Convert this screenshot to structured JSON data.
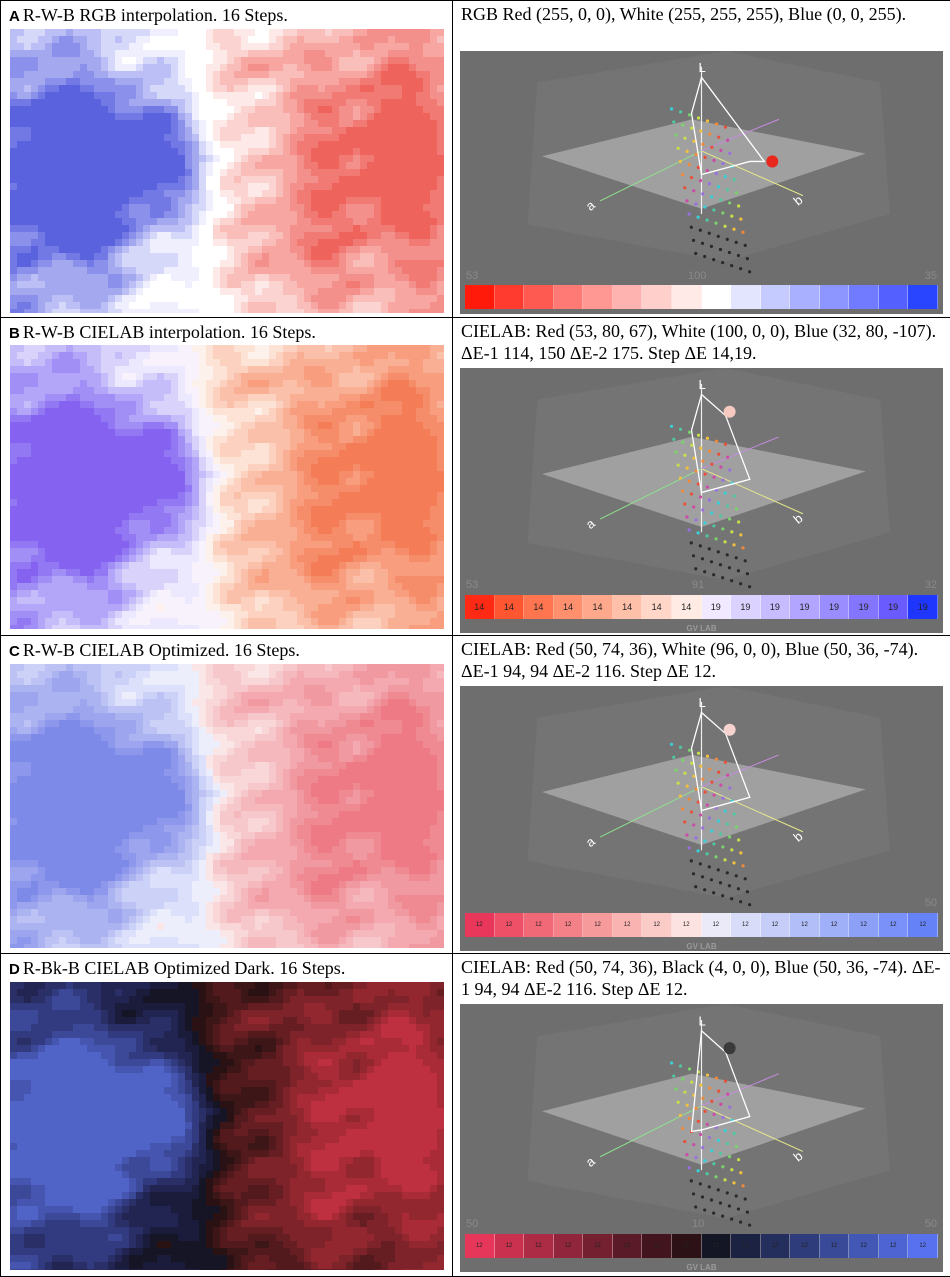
{
  "panels": [
    {
      "letter": "A",
      "caption": "R-W-B RGB interpolation. 16 Steps.",
      "right_caption": "RGB Red (255, 0, 0), White (255, 255, 255), Blue (0, 0, 255).",
      "corner_left": "53",
      "corner_mid": "100",
      "corner_right": "35",
      "show_gvlab": false,
      "ramp_labels": [],
      "ramp_colors": [
        "#ff1a0a",
        "#ff3a2e",
        "#ff5a52",
        "#ff7a74",
        "#ff9793",
        "#ffb3b0",
        "#ffcfcc",
        "#ffeae8",
        "#ffffff",
        "#e3e5ff",
        "#c6cbff",
        "#a9b0ff",
        "#8d95ff",
        "#707bff",
        "#5460ff",
        "#2a45ff"
      ],
      "map_palette": [
        "#5a62de",
        "#7279e4",
        "#8b90ea",
        "#a3a8ef",
        "#bcbff5",
        "#d6d8fa",
        "#efeffd",
        "#ffffff",
        "#ffffff",
        "#fde9e8",
        "#fbd3d1",
        "#f9bdba",
        "#f7a6a2",
        "#f4908b",
        "#f27a74",
        "#ef635d"
      ],
      "marker_color": "#e8281c"
    },
    {
      "letter": "B",
      "caption": "R-W-B CIELAB interpolation. 16 Steps.",
      "right_caption": "CIELAB: Red (53, 80, 67), White (100, 0, 0), Blue (32, 80, -107). ΔE-1 114, 150 ΔE-2 175. Step ΔE 14,19.",
      "corner_left": "53",
      "corner_mid": "91",
      "corner_right": "32",
      "show_gvlab": true,
      "gvlab": "GV LAB",
      "ramp_labels": [
        "14",
        "14",
        "14",
        "14",
        "14",
        "14",
        "14",
        "14",
        "19",
        "19",
        "19",
        "19",
        "19",
        "19",
        "19",
        "19"
      ],
      "ramp_colors": [
        "#ff2a14",
        "#ff5632",
        "#ff7550",
        "#ff8f6d",
        "#ffa88b",
        "#ffc0aa",
        "#ffd6c8",
        "#ffebe4",
        "#f0e9ff",
        "#dcd2ff",
        "#c7bcff",
        "#b1a5ff",
        "#9a8dff",
        "#8475ff",
        "#6a5bff",
        "#1f36ff"
      ],
      "map_palette": [
        "#8562f0",
        "#9278f3",
        "#a28ff5",
        "#b3a6f8",
        "#c5bdfa",
        "#d9d3fc",
        "#ece8fd",
        "#f7f2fc",
        "#fdf1ec",
        "#fde2d6",
        "#fcd1bf",
        "#fbc0a9",
        "#f9af93",
        "#f89e7e",
        "#f68d6a",
        "#f47c57"
      ],
      "marker_color": "#f6c9c0"
    },
    {
      "letter": "C",
      "caption": "R-W-B CIELAB Optimized. 16 Steps.",
      "right_caption": "CIELAB: Red (50, 74, 36), White (96, 0, 0), Blue (50, 36, -74). ΔE-1 94, 94 ΔE-2 116. Step ΔE 12.",
      "corner_left": "",
      "corner_mid": "",
      "corner_right": "50",
      "show_gvlab": true,
      "gvlab": "GV LAB",
      "ramp_labels": [
        "12",
        "12",
        "12",
        "12",
        "12",
        "12",
        "12",
        "12",
        "12",
        "12",
        "12",
        "12",
        "12",
        "12",
        "12",
        "12"
      ],
      "ramp_colors": [
        "#e8375a",
        "#ed5067",
        "#f16876",
        "#f48187",
        "#f79a9b",
        "#f9b3b1",
        "#fbcbc8",
        "#fce2e0",
        "#eaeaf8",
        "#d8dcf8",
        "#c5cdf8",
        "#b2bef8",
        "#9faff8",
        "#8ca0f8",
        "#7991f8",
        "#6682f7"
      ],
      "map_palette": [
        "#7e8ae8",
        "#8d97eb",
        "#9ca5ee",
        "#acb3f1",
        "#bcc2f4",
        "#ccd1f7",
        "#dce0fa",
        "#eceefc",
        "#fbe6e7",
        "#f9d7d9",
        "#f7c8cb",
        "#f5b8bd",
        "#f3a9af",
        "#f199a1",
        "#ef8a93",
        "#ed7a85"
      ],
      "marker_color": "#f7d3cf"
    },
    {
      "letter": "D",
      "caption": "R-Bk-B CIELAB Optimized Dark. 16 Steps.",
      "right_caption": "CIELAB: Red (50, 74, 36), Black (4, 0, 0), Blue (50, 36, -74). ΔE-1 94, 94 ΔE-2 116. Step ΔE 12.",
      "corner_left": "50",
      "corner_mid": "10",
      "corner_right": "50",
      "show_gvlab": true,
      "gvlab": "GV LAB",
      "ramp_labels": [
        "12",
        "12",
        "12",
        "12",
        "12",
        "12",
        "12",
        "12",
        "12",
        "12",
        "12",
        "12",
        "12",
        "12",
        "12",
        "12"
      ],
      "ramp_colors": [
        "#e6375a",
        "#c9314f",
        "#ac2b45",
        "#90253b",
        "#752031",
        "#5b1a27",
        "#42151e",
        "#2c1116",
        "#141626",
        "#1c2242",
        "#252f5e",
        "#2f3c7b",
        "#394a98",
        "#4357b5",
        "#4d64d2",
        "#5872ef"
      ],
      "map_palette": [
        "#5064c8",
        "#4656b0",
        "#3c4898",
        "#333b80",
        "#2a2f68",
        "#222451",
        "#1b1b3b",
        "#151526",
        "#2a1214",
        "#3d1618",
        "#521a1d",
        "#671e23",
        "#7d2329",
        "#922730",
        "#a82b37",
        "#be2f3f"
      ],
      "marker_color": "#3a3a3a"
    }
  ]
}
